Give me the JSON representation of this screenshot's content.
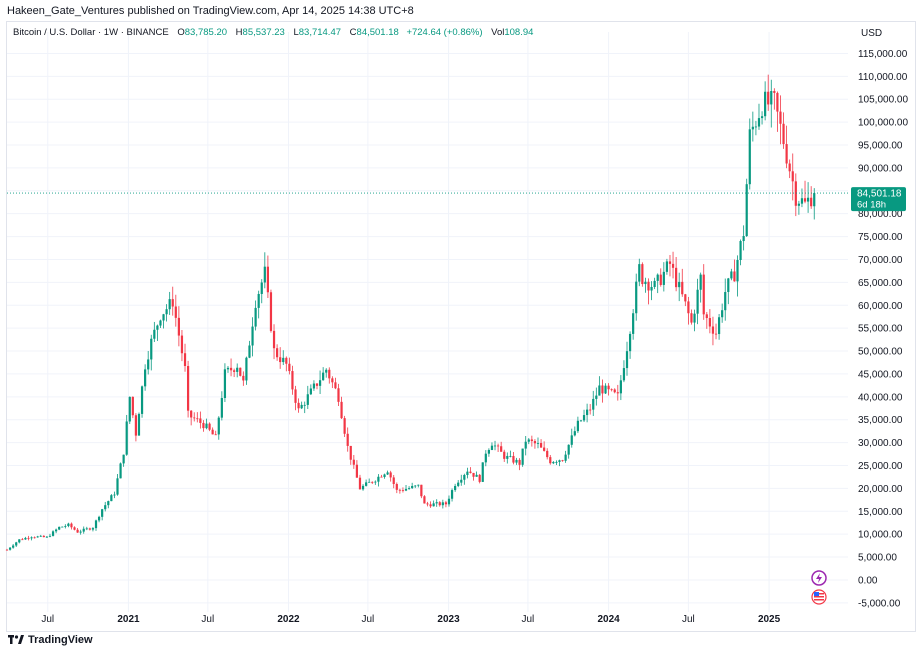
{
  "header": {
    "publish_line": "Hakeen_Gate_Ventures published on TradingView.com, Apr 14, 2025 14:38 UTC+8"
  },
  "legend": {
    "symbol": "Bitcoin / U.S. Dollar · 1W · BINANCE",
    "o_label": "O",
    "o_value": "83,785.20",
    "h_label": "H",
    "h_value": "85,537.23",
    "l_label": "L",
    "l_value": "83,714.47",
    "c_label": "C",
    "c_value": "84,501.18",
    "change": "+724.64 (+0.86%)",
    "vol_label": "Vol",
    "vol_value": "108.94"
  },
  "price_label": {
    "price": "84,501.18",
    "countdown": "6d 18h"
  },
  "footer": {
    "brand": "TradingView"
  },
  "colors": {
    "up": "#089981",
    "down": "#f23645",
    "grid": "#f0f3fa",
    "axis_text": "#131722",
    "current_line": "#089981"
  },
  "icons": [
    "bolt-event-icon",
    "us-flag-economic-event-icon",
    "tradingview-logo-icon"
  ],
  "chart_data": {
    "type": "candlestick",
    "currency": "USD",
    "y_ticks": [
      115000,
      110000,
      105000,
      100000,
      95000,
      90000,
      85000,
      80000,
      75000,
      70000,
      65000,
      60000,
      55000,
      50000,
      45000,
      40000,
      35000,
      30000,
      25000,
      20000,
      15000,
      10000,
      5000,
      0,
      -5000
    ],
    "y_tick_labels": [
      "115,000.00",
      "110,000.00",
      "105,000.00",
      "100,000.00",
      "95,000.00",
      "90,000.00",
      "85,000.00",
      "80,000.00",
      "75,000.00",
      "70,000.00",
      "65,000.00",
      "60,000.00",
      "55,000.00",
      "50,000.00",
      "45,000.00",
      "40,000.00",
      "35,000.00",
      "30,000.00",
      "25,000.00",
      "20,000.00",
      "15,000.00",
      "10,000.00",
      "5,000.00",
      "0.00",
      "-5,000.00"
    ],
    "ylim": [
      -7000,
      117500
    ],
    "x_ticks": [
      {
        "label": "Jul",
        "date": "2020-07-01"
      },
      {
        "label": "2021",
        "date": "2021-01-01"
      },
      {
        "label": "Jul",
        "date": "2021-07-01"
      },
      {
        "label": "2022",
        "date": "2022-01-01"
      },
      {
        "label": "Jul",
        "date": "2022-07-01"
      },
      {
        "label": "2023",
        "date": "2023-01-01"
      },
      {
        "label": "Jul",
        "date": "2023-07-01"
      },
      {
        "label": "2024",
        "date": "2024-01-01"
      },
      {
        "label": "Jul",
        "date": "2024-07-01"
      },
      {
        "label": "2025",
        "date": "2025-01-01"
      }
    ],
    "xlim": [
      "2020-03-30",
      "2025-06-30"
    ],
    "last_price": 84501.18,
    "weekly_close_path": [
      [
        "2020-03-30",
        6600
      ],
      [
        "2020-04-27",
        8800
      ],
      [
        "2020-05-25",
        9500
      ],
      [
        "2020-06-29",
        9300
      ],
      [
        "2020-07-27",
        11500
      ],
      [
        "2020-08-17",
        12000
      ],
      [
        "2020-09-07",
        10500
      ],
      [
        "2020-10-12",
        11500
      ],
      [
        "2020-11-02",
        15500
      ],
      [
        "2020-11-30",
        19000
      ],
      [
        "2020-12-21",
        28000
      ],
      [
        "2021-01-04",
        40000
      ],
      [
        "2021-01-18",
        32000
      ],
      [
        "2021-02-08",
        47000
      ],
      [
        "2021-02-22",
        52000
      ],
      [
        "2021-03-15",
        58000
      ],
      [
        "2021-04-05",
        60000
      ],
      [
        "2021-04-12",
        61000
      ],
      [
        "2021-05-10",
        46000
      ],
      [
        "2021-05-17",
        36000
      ],
      [
        "2021-06-21",
        34000
      ],
      [
        "2021-07-19",
        31000
      ],
      [
        "2021-08-09",
        45000
      ],
      [
        "2021-09-06",
        47000
      ],
      [
        "2021-09-20",
        43000
      ],
      [
        "2021-10-18",
        61000
      ],
      [
        "2021-11-08",
        67000
      ],
      [
        "2021-11-29",
        50000
      ],
      [
        "2021-12-27",
        47000
      ],
      [
        "2022-01-24",
        37000
      ],
      [
        "2022-03-28",
        46000
      ],
      [
        "2022-04-25",
        40000
      ],
      [
        "2022-05-16",
        29000
      ],
      [
        "2022-06-13",
        20000
      ],
      [
        "2022-07-18",
        22000
      ],
      [
        "2022-08-15",
        24000
      ],
      [
        "2022-09-05",
        19500
      ],
      [
        "2022-10-24",
        20500
      ],
      [
        "2022-11-07",
        16500
      ],
      [
        "2022-12-26",
        16600
      ],
      [
        "2023-01-16",
        21000
      ],
      [
        "2023-02-13",
        24000
      ],
      [
        "2023-03-13",
        22000
      ],
      [
        "2023-03-27",
        28000
      ],
      [
        "2023-04-10",
        30000
      ],
      [
        "2023-05-08",
        27000
      ],
      [
        "2023-06-12",
        25500
      ],
      [
        "2023-06-26",
        30500
      ],
      [
        "2023-07-24",
        29500
      ],
      [
        "2023-08-21",
        26000
      ],
      [
        "2023-09-18",
        26500
      ],
      [
        "2023-10-23",
        34000
      ],
      [
        "2023-11-20",
        37500
      ],
      [
        "2023-12-11",
        42000
      ],
      [
        "2024-01-22",
        40000
      ],
      [
        "2024-02-12",
        51000
      ],
      [
        "2024-03-11",
        68000
      ],
      [
        "2024-03-18",
        66000
      ],
      [
        "2024-04-15",
        64000
      ],
      [
        "2024-05-20",
        69000
      ],
      [
        "2024-06-24",
        60000
      ],
      [
        "2024-07-08",
        56000
      ],
      [
        "2024-07-29",
        66000
      ],
      [
        "2024-08-05",
        58000
      ],
      [
        "2024-09-02",
        54000
      ],
      [
        "2024-09-23",
        63000
      ],
      [
        "2024-10-14",
        67000
      ],
      [
        "2024-11-04",
        76000
      ],
      [
        "2024-11-18",
        97000
      ],
      [
        "2024-12-16",
        104000
      ],
      [
        "2025-01-13",
        104000
      ],
      [
        "2025-02-03",
        96000
      ],
      [
        "2025-03-03",
        84000
      ],
      [
        "2025-03-24",
        82000
      ],
      [
        "2025-04-07",
        83800
      ],
      [
        "2025-04-14",
        84501
      ]
    ]
  }
}
